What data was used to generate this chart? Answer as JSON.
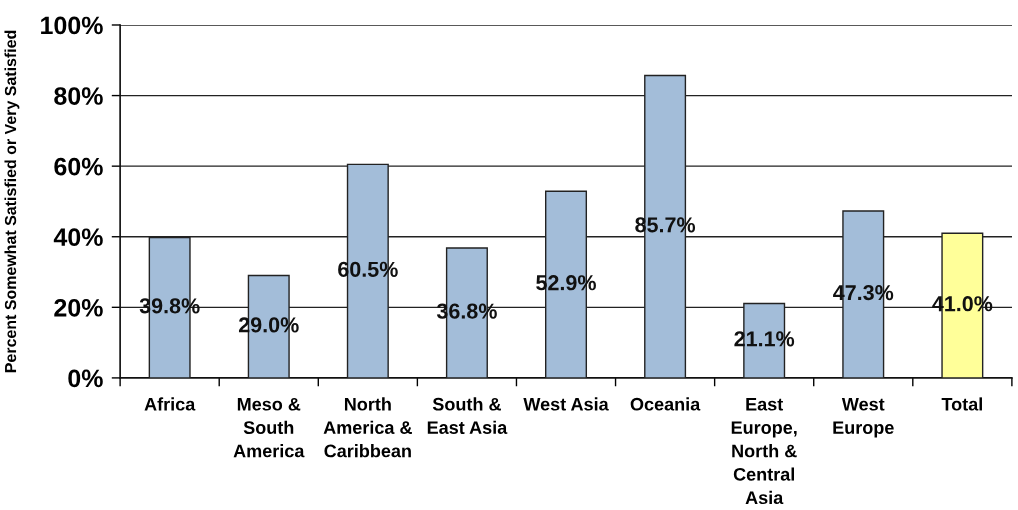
{
  "chart_data": {
    "type": "bar",
    "ylabel": "Percent Somewhat Satisfied or Very Satisfied",
    "categories": [
      "Africa",
      "Meso &\nSouth\nAmerica",
      "North\nAmerica &\nCaribbean",
      "South &\nEast Asia",
      "West Asia",
      "Oceania",
      "East\nEurope,\nNorth &\nCentral\nAsia",
      "West\nEurope",
      "Total"
    ],
    "values": [
      39.8,
      29.0,
      60.5,
      36.8,
      52.9,
      85.7,
      21.1,
      47.3,
      41.0
    ],
    "colors": [
      "#a3bdd9",
      "#a3bdd9",
      "#a3bdd9",
      "#a3bdd9",
      "#a3bdd9",
      "#a3bdd9",
      "#a3bdd9",
      "#a3bdd9",
      "#ffff99"
    ],
    "value_labels": [
      "39.8%",
      "29.0%",
      "60.5%",
      "36.8%",
      "52.9%",
      "85.7%",
      "21.1%",
      "47.3%",
      "41.0%"
    ],
    "ylim": [
      0,
      100
    ],
    "yticks": [
      {
        "value": 0,
        "label": "0%"
      },
      {
        "value": 20,
        "label": "20%"
      },
      {
        "value": 40,
        "label": "40%"
      },
      {
        "value": 60,
        "label": "60%"
      },
      {
        "value": 80,
        "label": "80%"
      },
      {
        "value": 100,
        "label": "100%"
      }
    ],
    "grid": "y",
    "legend": false
  }
}
